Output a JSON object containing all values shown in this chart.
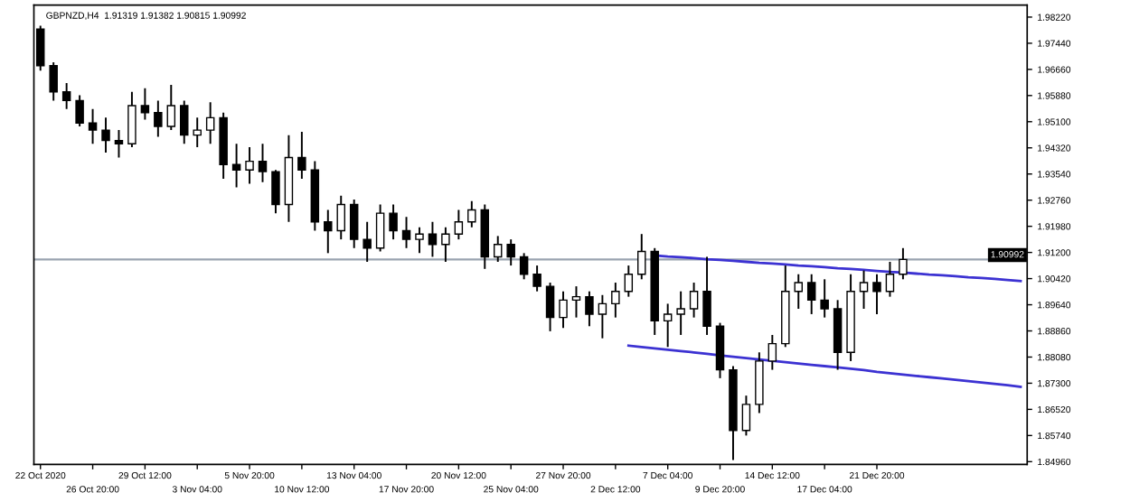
{
  "chart_data": {
    "type": "candlestick",
    "title": "GBPNZD,H4  1.91319 1.91382 1.90815 1.90992",
    "color": "#000000",
    "categories": [
      "22 Oct 2020",
      null,
      null,
      null,
      "26 Oct 20:00",
      null,
      null,
      null,
      "29 Oct 12:00",
      null,
      null,
      null,
      "3 Nov 04:00",
      null,
      null,
      null,
      "5 Nov 20:00",
      null,
      null,
      null,
      "10 Nov 12:00",
      null,
      null,
      null,
      "13 Nov 04:00",
      null,
      null,
      null,
      "17 Nov 20:00",
      null,
      null,
      null,
      "20 Nov 12:00",
      null,
      null,
      null,
      "25 Nov 04:00",
      null,
      null,
      null,
      "27 Nov 20:00",
      null,
      null,
      null,
      "2 Dec 12:00",
      null,
      null,
      null,
      "7 Dec 04:00",
      null,
      null,
      null,
      "9 Dec 20:00",
      null,
      null,
      null,
      "14 Dec 12:00",
      null,
      null,
      null,
      "17 Dec 04:00",
      null,
      null,
      null,
      "21 Dec 20:00",
      null,
      null,
      null,
      null,
      null,
      null,
      null,
      null,
      null,
      null,
      null
    ],
    "ohlc": [
      [
        1.9786,
        1.9796,
        1.9662,
        1.9677
      ],
      [
        1.9677,
        1.9687,
        1.9573,
        1.9599
      ],
      [
        1.9599,
        1.9625,
        1.9548,
        1.9573
      ],
      [
        1.9573,
        1.9589,
        1.9496,
        1.9506
      ],
      [
        1.9506,
        1.9548,
        1.9444,
        1.9485
      ],
      [
        1.9485,
        1.9522,
        1.9418,
        1.9454
      ],
      [
        1.9454,
        1.9485,
        1.9403,
        1.9444
      ],
      [
        1.9444,
        1.9599,
        1.9434,
        1.9558
      ],
      [
        1.9558,
        1.961,
        1.9516,
        1.9537
      ],
      [
        1.9537,
        1.9573,
        1.9465,
        1.9496
      ],
      [
        1.9496,
        1.962,
        1.9485,
        1.9558
      ],
      [
        1.9558,
        1.9573,
        1.9444,
        1.947
      ],
      [
        1.947,
        1.9522,
        1.9434,
        1.9485
      ],
      [
        1.9485,
        1.9568,
        1.9444,
        1.9522
      ],
      [
        1.9522,
        1.9537,
        1.934,
        1.9382
      ],
      [
        1.9382,
        1.9444,
        1.9314,
        1.9366
      ],
      [
        1.9366,
        1.9434,
        1.9325,
        1.9392
      ],
      [
        1.9392,
        1.9444,
        1.933,
        1.9361
      ],
      [
        1.9361,
        1.9366,
        1.9237,
        1.9263
      ],
      [
        1.9263,
        1.947,
        1.9211,
        1.9403
      ],
      [
        1.9403,
        1.948,
        1.934,
        1.9366
      ],
      [
        1.9366,
        1.9392,
        1.9185,
        1.9211
      ],
      [
        1.9211,
        1.9247,
        1.9118,
        1.9185
      ],
      [
        1.9185,
        1.9289,
        1.9159,
        1.9263
      ],
      [
        1.9263,
        1.9278,
        1.9133,
        1.9159
      ],
      [
        1.9159,
        1.9211,
        1.9092,
        1.9133
      ],
      [
        1.9133,
        1.9263,
        1.9123,
        1.9237
      ],
      [
        1.9237,
        1.9263,
        1.9159,
        1.9185
      ],
      [
        1.9185,
        1.9226,
        1.9133,
        1.9159
      ],
      [
        1.9159,
        1.9195,
        1.9118,
        1.9175
      ],
      [
        1.9175,
        1.9211,
        1.9107,
        1.9144
      ],
      [
        1.9144,
        1.9195,
        1.9092,
        1.9175
      ],
      [
        1.9175,
        1.9247,
        1.9159,
        1.9211
      ],
      [
        1.9211,
        1.9273,
        1.9195,
        1.9247
      ],
      [
        1.9247,
        1.9263,
        1.9071,
        1.9107
      ],
      [
        1.9107,
        1.9169,
        1.9092,
        1.9144
      ],
      [
        1.9144,
        1.9159,
        1.9081,
        1.9107
      ],
      [
        1.9107,
        1.9118,
        1.904,
        1.9055
      ],
      [
        1.9055,
        1.9081,
        1.9004,
        1.9019
      ],
      [
        1.9019,
        1.903,
        1.8885,
        1.8926
      ],
      [
        1.8926,
        1.9004,
        1.8895,
        1.8978
      ],
      [
        1.8978,
        1.9019,
        1.8926,
        1.8988
      ],
      [
        1.8988,
        1.9004,
        1.89,
        1.8936
      ],
      [
        1.8936,
        1.8993,
        1.8864,
        1.8967
      ],
      [
        1.8967,
        1.903,
        1.8926,
        1.9004
      ],
      [
        1.9004,
        1.9081,
        1.8988,
        1.9055
      ],
      [
        1.9055,
        1.9175,
        1.904,
        1.9123
      ],
      [
        1.9123,
        1.9133,
        1.8874,
        1.8916
      ],
      [
        1.8916,
        1.8967,
        1.8838,
        1.8936
      ],
      [
        1.8936,
        1.9004,
        1.8874,
        1.8952
      ],
      [
        1.8952,
        1.903,
        1.8926,
        1.9004
      ],
      [
        1.9004,
        1.9107,
        1.8874,
        1.89
      ],
      [
        1.89,
        1.891,
        1.8745,
        1.877
      ],
      [
        1.877,
        1.8781,
        1.8501,
        1.8589
      ],
      [
        1.8589,
        1.8693,
        1.8574,
        1.8667
      ],
      [
        1.8667,
        1.8822,
        1.8641,
        1.8796
      ],
      [
        1.8796,
        1.8874,
        1.877,
        1.8848
      ],
      [
        1.8848,
        1.9081,
        1.8838,
        1.9004
      ],
      [
        1.9004,
        1.9055,
        1.8952,
        1.903
      ],
      [
        1.903,
        1.9055,
        1.8936,
        1.8978
      ],
      [
        1.8978,
        1.904,
        1.8926,
        1.8952
      ],
      [
        1.8952,
        1.8978,
        1.877,
        1.8822
      ],
      [
        1.8822,
        1.9055,
        1.8796,
        1.9004
      ],
      [
        1.9004,
        1.9066,
        1.8952,
        1.903
      ],
      [
        1.903,
        1.9055,
        1.8936,
        1.9004
      ],
      [
        1.9004,
        1.9092,
        1.8988,
        1.9055
      ],
      [
        1.9055,
        1.9133,
        1.904,
        1.9099
      ],
      null,
      null,
      null,
      null,
      null,
      null,
      null,
      null,
      null
    ],
    "series": [
      {
        "type": "line",
        "color": "#3c32d2",
        "values": [
          null,
          null,
          null,
          null,
          null,
          null,
          null,
          null,
          null,
          null,
          null,
          null,
          null,
          null,
          null,
          null,
          null,
          null,
          null,
          null,
          null,
          null,
          null,
          null,
          null,
          null,
          null,
          null,
          null,
          null,
          null,
          null,
          null,
          null,
          null,
          null,
          null,
          null,
          null,
          null,
          null,
          null,
          null,
          null,
          null,
          null,
          null,
          1.9111,
          1.9108,
          1.9106,
          1.9103,
          1.91,
          1.9098,
          1.9095,
          1.9092,
          1.9089,
          1.9087,
          1.9084,
          1.9081,
          1.9079,
          1.9076,
          1.9073,
          1.9071,
          1.9068,
          1.9065,
          1.9062,
          1.906,
          1.9057,
          1.9054,
          1.9052,
          1.9049,
          1.9046,
          1.9044,
          1.9041,
          1.9038,
          1.9035
        ]
      },
      {
        "type": "line",
        "color": "#3c32d2",
        "values": [
          null,
          null,
          null,
          null,
          null,
          null,
          null,
          null,
          null,
          null,
          null,
          null,
          null,
          null,
          null,
          null,
          null,
          null,
          null,
          null,
          null,
          null,
          null,
          null,
          null,
          null,
          null,
          null,
          null,
          null,
          null,
          null,
          null,
          null,
          null,
          null,
          null,
          null,
          null,
          null,
          null,
          null,
          null,
          null,
          null,
          1.8842,
          1.8838,
          1.8834,
          1.883,
          1.8826,
          1.8822,
          1.8818,
          1.8813,
          1.8809,
          1.8805,
          1.8801,
          1.8797,
          1.8793,
          1.8789,
          1.8785,
          1.8781,
          1.8777,
          1.8773,
          1.8769,
          1.8764,
          1.876,
          1.8756,
          1.8752,
          1.8748,
          1.8744,
          1.874,
          1.8736,
          1.8732,
          1.8728,
          1.8724,
          1.8719
        ]
      }
    ],
    "ylim": [
      1.8488,
      1.9858
    ],
    "yticks": [
      {
        "value": 1.9822,
        "label": "1.98220"
      },
      {
        "value": 1.9744,
        "label": "1.97440"
      },
      {
        "value": 1.9666,
        "label": "1.96660"
      },
      {
        "value": 1.9588,
        "label": "1.95880"
      },
      {
        "value": 1.951,
        "label": "1.95100"
      },
      {
        "value": 1.9432,
        "label": "1.94320"
      },
      {
        "value": 1.9354,
        "label": "1.93540"
      },
      {
        "value": 1.9276,
        "label": "1.92760"
      },
      {
        "value": 1.9198,
        "label": "1.91980"
      },
      {
        "value": 1.912,
        "label": "1.91200"
      },
      {
        "value": 1.9042,
        "label": "1.90420"
      },
      {
        "value": 1.8964,
        "label": "1.89640"
      },
      {
        "value": 1.8886,
        "label": "1.88860"
      },
      {
        "value": 1.8808,
        "label": "1.88080"
      },
      {
        "value": 1.873,
        "label": "1.87300"
      },
      {
        "value": 1.8652,
        "label": "1.86520"
      },
      {
        "value": 1.8574,
        "label": "1.85740"
      },
      {
        "value": 1.8496,
        "label": "1.84960"
      }
    ],
    "ref_lines": [
      {
        "axis": "y",
        "value": 1.90992,
        "label": "1.90992",
        "color": "#9aa4b0"
      }
    ],
    "grid": false
  }
}
